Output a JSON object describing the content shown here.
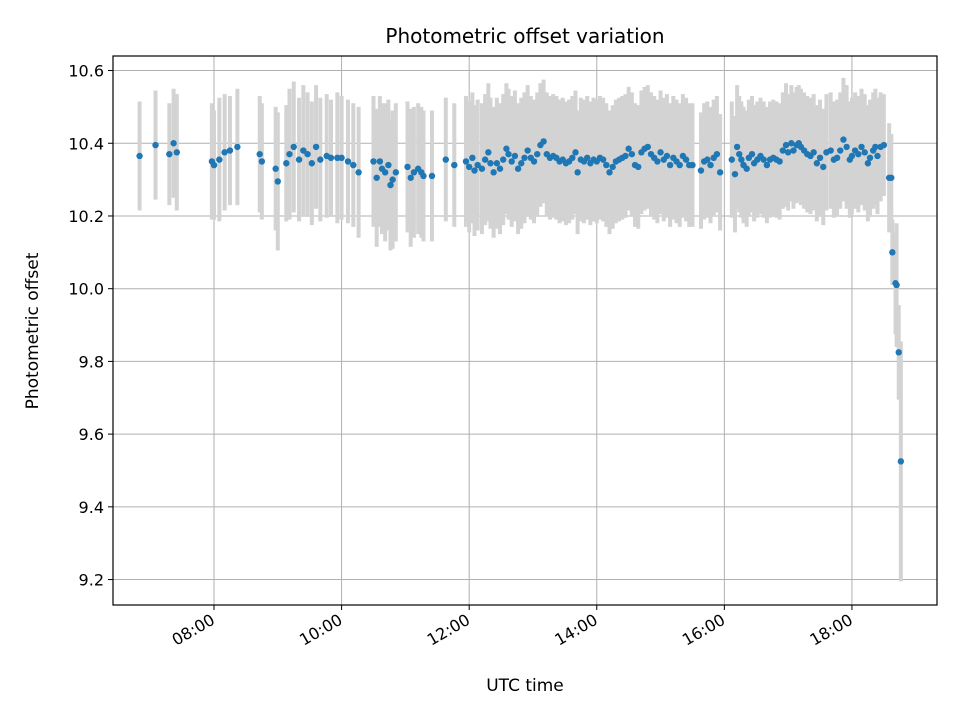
{
  "chart_data": {
    "type": "scatter",
    "title": "Photometric offset variation",
    "xlabel": "UTC time",
    "ylabel": "Photometric offset",
    "x_unit": "hours (UTC)",
    "xlim": [
      "06:25",
      "19:20"
    ],
    "ylim": [
      9.13,
      10.64
    ],
    "x_ticks": [
      "08:00",
      "10:00",
      "12:00",
      "14:00",
      "16:00",
      "18:00"
    ],
    "y_ticks": [
      "9.2",
      "9.4",
      "9.6",
      "9.8",
      "10.0",
      "10.2",
      "10.4",
      "10.6"
    ],
    "grid": true,
    "legend": "none",
    "colors": {
      "points": "#1f77b4",
      "errorbars": "#d3d3d3",
      "grid": "#b0b0b0"
    },
    "series": [
      {
        "points": [
          {
            "x": "06:50",
            "y": 10.365,
            "err": 0.15
          },
          {
            "x": "07:05",
            "y": 10.395,
            "err": 0.15
          },
          {
            "x": "07:18",
            "y": 10.37,
            "err": 0.14
          },
          {
            "x": "07:22",
            "y": 10.4,
            "err": 0.15
          },
          {
            "x": "07:25",
            "y": 10.375,
            "err": 0.16
          },
          {
            "x": "07:58",
            "y": 10.35,
            "err": 0.16
          },
          {
            "x": "08:00",
            "y": 10.34,
            "err": 0.15
          },
          {
            "x": "08:05",
            "y": 10.355,
            "err": 0.17
          },
          {
            "x": "08:10",
            "y": 10.375,
            "err": 0.16
          },
          {
            "x": "08:15",
            "y": 10.38,
            "err": 0.15
          },
          {
            "x": "08:22",
            "y": 10.39,
            "err": 0.16
          },
          {
            "x": "08:43",
            "y": 10.37,
            "err": 0.16
          },
          {
            "x": "08:45",
            "y": 10.35,
            "err": 0.16
          },
          {
            "x": "08:58",
            "y": 10.33,
            "err": 0.17
          },
          {
            "x": "09:00",
            "y": 10.295,
            "err": 0.19
          },
          {
            "x": "09:08",
            "y": 10.345,
            "err": 0.16
          },
          {
            "x": "09:11",
            "y": 10.37,
            "err": 0.18
          },
          {
            "x": "09:15",
            "y": 10.39,
            "err": 0.18
          },
          {
            "x": "09:20",
            "y": 10.355,
            "err": 0.17
          },
          {
            "x": "09:24",
            "y": 10.38,
            "err": 0.18
          },
          {
            "x": "09:28",
            "y": 10.37,
            "err": 0.17
          },
          {
            "x": "09:32",
            "y": 10.345,
            "err": 0.17
          },
          {
            "x": "09:36",
            "y": 10.39,
            "err": 0.17
          },
          {
            "x": "09:40",
            "y": 10.355,
            "err": 0.17
          },
          {
            "x": "09:46",
            "y": 10.365,
            "err": 0.17
          },
          {
            "x": "09:50",
            "y": 10.36,
            "err": 0.16
          },
          {
            "x": "09:56",
            "y": 10.36,
            "err": 0.18
          },
          {
            "x": "10:00",
            "y": 10.36,
            "err": 0.17
          },
          {
            "x": "10:06",
            "y": 10.35,
            "err": 0.17
          },
          {
            "x": "10:11",
            "y": 10.34,
            "err": 0.17
          },
          {
            "x": "10:16",
            "y": 10.32,
            "err": 0.18
          },
          {
            "x": "10:30",
            "y": 10.35,
            "err": 0.18
          },
          {
            "x": "10:33",
            "y": 10.305,
            "err": 0.19
          },
          {
            "x": "10:36",
            "y": 10.35,
            "err": 0.18
          },
          {
            "x": "10:38",
            "y": 10.33,
            "err": 0.18
          },
          {
            "x": "10:41",
            "y": 10.32,
            "err": 0.19
          },
          {
            "x": "10:44",
            "y": 10.34,
            "err": 0.18
          },
          {
            "x": "10:46",
            "y": 10.285,
            "err": 0.18
          },
          {
            "x": "10:48",
            "y": 10.3,
            "err": 0.19
          },
          {
            "x": "10:51",
            "y": 10.32,
            "err": 0.19
          },
          {
            "x": "11:02",
            "y": 10.335,
            "err": 0.18
          },
          {
            "x": "11:05",
            "y": 10.305,
            "err": 0.19
          },
          {
            "x": "11:08",
            "y": 10.32,
            "err": 0.18
          },
          {
            "x": "11:12",
            "y": 10.33,
            "err": 0.18
          },
          {
            "x": "11:15",
            "y": 10.32,
            "err": 0.18
          },
          {
            "x": "11:17",
            "y": 10.31,
            "err": 0.18
          },
          {
            "x": "11:25",
            "y": 10.31,
            "err": 0.18
          },
          {
            "x": "11:38",
            "y": 10.355,
            "err": 0.17
          },
          {
            "x": "11:46",
            "y": 10.34,
            "err": 0.17
          },
          {
            "x": "11:57",
            "y": 10.35,
            "err": 0.18
          },
          {
            "x": "12:00",
            "y": 10.335,
            "err": 0.18
          },
          {
            "x": "12:03",
            "y": 10.36,
            "err": 0.18
          },
          {
            "x": "12:05",
            "y": 10.325,
            "err": 0.18
          },
          {
            "x": "12:08",
            "y": 10.34,
            "err": 0.18
          },
          {
            "x": "12:12",
            "y": 10.33,
            "err": 0.18
          },
          {
            "x": "12:15",
            "y": 10.355,
            "err": 0.18
          },
          {
            "x": "12:18",
            "y": 10.375,
            "err": 0.19
          },
          {
            "x": "12:20",
            "y": 10.345,
            "err": 0.18
          },
          {
            "x": "12:23",
            "y": 10.32,
            "err": 0.18
          },
          {
            "x": "12:26",
            "y": 10.345,
            "err": 0.18
          },
          {
            "x": "12:29",
            "y": 10.33,
            "err": 0.18
          },
          {
            "x": "12:32",
            "y": 10.355,
            "err": 0.18
          },
          {
            "x": "12:35",
            "y": 10.385,
            "err": 0.18
          },
          {
            "x": "12:37",
            "y": 10.37,
            "err": 0.18
          },
          {
            "x": "12:40",
            "y": 10.35,
            "err": 0.18
          },
          {
            "x": "12:43",
            "y": 10.365,
            "err": 0.18
          },
          {
            "x": "12:46",
            "y": 10.33,
            "err": 0.18
          },
          {
            "x": "12:49",
            "y": 10.345,
            "err": 0.18
          },
          {
            "x": "12:52",
            "y": 10.36,
            "err": 0.18
          },
          {
            "x": "12:55",
            "y": 10.38,
            "err": 0.18
          },
          {
            "x": "12:58",
            "y": 10.36,
            "err": 0.17
          },
          {
            "x": "13:01",
            "y": 10.35,
            "err": 0.17
          },
          {
            "x": "13:04",
            "y": 10.37,
            "err": 0.17
          },
          {
            "x": "13:07",
            "y": 10.395,
            "err": 0.17
          },
          {
            "x": "13:10",
            "y": 10.405,
            "err": 0.17
          },
          {
            "x": "13:13",
            "y": 10.37,
            "err": 0.17
          },
          {
            "x": "13:16",
            "y": 10.36,
            "err": 0.17
          },
          {
            "x": "13:19",
            "y": 10.365,
            "err": 0.17
          },
          {
            "x": "13:22",
            "y": 10.36,
            "err": 0.17
          },
          {
            "x": "13:25",
            "y": 10.35,
            "err": 0.17
          },
          {
            "x": "13:28",
            "y": 10.355,
            "err": 0.17
          },
          {
            "x": "13:31",
            "y": 10.345,
            "err": 0.17
          },
          {
            "x": "13:34",
            "y": 10.35,
            "err": 0.17
          },
          {
            "x": "13:37",
            "y": 10.36,
            "err": 0.17
          },
          {
            "x": "13:40",
            "y": 10.375,
            "err": 0.17
          },
          {
            "x": "13:42",
            "y": 10.32,
            "err": 0.17
          },
          {
            "x": "13:45",
            "y": 10.355,
            "err": 0.17
          },
          {
            "x": "13:48",
            "y": 10.35,
            "err": 0.17
          },
          {
            "x": "13:51",
            "y": 10.36,
            "err": 0.17
          },
          {
            "x": "13:54",
            "y": 10.345,
            "err": 0.17
          },
          {
            "x": "13:57",
            "y": 10.355,
            "err": 0.17
          },
          {
            "x": "14:00",
            "y": 10.35,
            "err": 0.17
          },
          {
            "x": "14:03",
            "y": 10.36,
            "err": 0.17
          },
          {
            "x": "14:06",
            "y": 10.355,
            "err": 0.17
          },
          {
            "x": "14:09",
            "y": 10.34,
            "err": 0.17
          },
          {
            "x": "14:12",
            "y": 10.32,
            "err": 0.17
          },
          {
            "x": "14:15",
            "y": 10.335,
            "err": 0.17
          },
          {
            "x": "14:18",
            "y": 10.35,
            "err": 0.17
          },
          {
            "x": "14:21",
            "y": 10.355,
            "err": 0.17
          },
          {
            "x": "14:24",
            "y": 10.36,
            "err": 0.17
          },
          {
            "x": "14:27",
            "y": 10.365,
            "err": 0.17
          },
          {
            "x": "14:30",
            "y": 10.385,
            "err": 0.17
          },
          {
            "x": "14:33",
            "y": 10.37,
            "err": 0.17
          },
          {
            "x": "14:36",
            "y": 10.34,
            "err": 0.17
          },
          {
            "x": "14:39",
            "y": 10.335,
            "err": 0.17
          },
          {
            "x": "14:42",
            "y": 10.375,
            "err": 0.17
          },
          {
            "x": "14:45",
            "y": 10.385,
            "err": 0.17
          },
          {
            "x": "14:48",
            "y": 10.39,
            "err": 0.17
          },
          {
            "x": "14:51",
            "y": 10.37,
            "err": 0.17
          },
          {
            "x": "14:54",
            "y": 10.36,
            "err": 0.17
          },
          {
            "x": "14:57",
            "y": 10.35,
            "err": 0.17
          },
          {
            "x": "15:00",
            "y": 10.375,
            "err": 0.17
          },
          {
            "x": "15:03",
            "y": 10.355,
            "err": 0.17
          },
          {
            "x": "15:06",
            "y": 10.365,
            "err": 0.17
          },
          {
            "x": "15:09",
            "y": 10.34,
            "err": 0.17
          },
          {
            "x": "15:12",
            "y": 10.36,
            "err": 0.17
          },
          {
            "x": "15:15",
            "y": 10.35,
            "err": 0.17
          },
          {
            "x": "15:18",
            "y": 10.34,
            "err": 0.17
          },
          {
            "x": "15:21",
            "y": 10.365,
            "err": 0.17
          },
          {
            "x": "15:24",
            "y": 10.355,
            "err": 0.17
          },
          {
            "x": "15:27",
            "y": 10.34,
            "err": 0.17
          },
          {
            "x": "15:30",
            "y": 10.34,
            "err": 0.17
          },
          {
            "x": "15:38",
            "y": 10.325,
            "err": 0.16
          },
          {
            "x": "15:41",
            "y": 10.35,
            "err": 0.16
          },
          {
            "x": "15:44",
            "y": 10.355,
            "err": 0.16
          },
          {
            "x": "15:47",
            "y": 10.34,
            "err": 0.16
          },
          {
            "x": "15:50",
            "y": 10.36,
            "err": 0.16
          },
          {
            "x": "15:53",
            "y": 10.37,
            "err": 0.16
          },
          {
            "x": "15:56",
            "y": 10.32,
            "err": 0.16
          },
          {
            "x": "16:07",
            "y": 10.355,
            "err": 0.16
          },
          {
            "x": "16:10",
            "y": 10.315,
            "err": 0.16
          },
          {
            "x": "16:12",
            "y": 10.39,
            "err": 0.17
          },
          {
            "x": "16:14",
            "y": 10.37,
            "err": 0.16
          },
          {
            "x": "16:16",
            "y": 10.355,
            "err": 0.16
          },
          {
            "x": "16:18",
            "y": 10.34,
            "err": 0.16
          },
          {
            "x": "16:21",
            "y": 10.33,
            "err": 0.16
          },
          {
            "x": "16:23",
            "y": 10.36,
            "err": 0.16
          },
          {
            "x": "16:26",
            "y": 10.37,
            "err": 0.16
          },
          {
            "x": "16:28",
            "y": 10.345,
            "err": 0.16
          },
          {
            "x": "16:31",
            "y": 10.355,
            "err": 0.16
          },
          {
            "x": "16:34",
            "y": 10.365,
            "err": 0.16
          },
          {
            "x": "16:37",
            "y": 10.355,
            "err": 0.16
          },
          {
            "x": "16:40",
            "y": 10.34,
            "err": 0.16
          },
          {
            "x": "16:43",
            "y": 10.355,
            "err": 0.16
          },
          {
            "x": "16:46",
            "y": 10.36,
            "err": 0.16
          },
          {
            "x": "16:49",
            "y": 10.355,
            "err": 0.16
          },
          {
            "x": "16:52",
            "y": 10.35,
            "err": 0.16
          },
          {
            "x": "16:55",
            "y": 10.38,
            "err": 0.16
          },
          {
            "x": "16:58",
            "y": 10.395,
            "err": 0.17
          },
          {
            "x": "17:00",
            "y": 10.375,
            "err": 0.16
          },
          {
            "x": "17:03",
            "y": 10.4,
            "err": 0.16
          },
          {
            "x": "17:05",
            "y": 10.38,
            "err": 0.16
          },
          {
            "x": "17:08",
            "y": 10.395,
            "err": 0.16
          },
          {
            "x": "17:10",
            "y": 10.4,
            "err": 0.16
          },
          {
            "x": "17:12",
            "y": 10.39,
            "err": 0.16
          },
          {
            "x": "17:15",
            "y": 10.38,
            "err": 0.16
          },
          {
            "x": "17:18",
            "y": 10.37,
            "err": 0.16
          },
          {
            "x": "17:21",
            "y": 10.365,
            "err": 0.16
          },
          {
            "x": "17:24",
            "y": 10.375,
            "err": 0.16
          },
          {
            "x": "17:27",
            "y": 10.345,
            "err": 0.16
          },
          {
            "x": "17:30",
            "y": 10.36,
            "err": 0.16
          },
          {
            "x": "17:33",
            "y": 10.335,
            "err": 0.16
          },
          {
            "x": "17:36",
            "y": 10.375,
            "err": 0.16
          },
          {
            "x": "17:40",
            "y": 10.38,
            "err": 0.16
          },
          {
            "x": "17:43",
            "y": 10.355,
            "err": 0.16
          },
          {
            "x": "17:46",
            "y": 10.36,
            "err": 0.16
          },
          {
            "x": "17:49",
            "y": 10.38,
            "err": 0.16
          },
          {
            "x": "17:52",
            "y": 10.41,
            "err": 0.17
          },
          {
            "x": "17:55",
            "y": 10.39,
            "err": 0.17
          },
          {
            "x": "17:58",
            "y": 10.355,
            "err": 0.16
          },
          {
            "x": "18:00",
            "y": 10.365,
            "err": 0.16
          },
          {
            "x": "18:03",
            "y": 10.38,
            "err": 0.16
          },
          {
            "x": "18:06",
            "y": 10.37,
            "err": 0.16
          },
          {
            "x": "18:09",
            "y": 10.39,
            "err": 0.16
          },
          {
            "x": "18:12",
            "y": 10.375,
            "err": 0.16
          },
          {
            "x": "18:15",
            "y": 10.345,
            "err": 0.16
          },
          {
            "x": "18:17",
            "y": 10.36,
            "err": 0.16
          },
          {
            "x": "18:20",
            "y": 10.38,
            "err": 0.16
          },
          {
            "x": "18:22",
            "y": 10.39,
            "err": 0.16
          },
          {
            "x": "18:24",
            "y": 10.365,
            "err": 0.16
          },
          {
            "x": "18:27",
            "y": 10.39,
            "err": 0.15
          },
          {
            "x": "18:30",
            "y": 10.395,
            "err": 0.14
          },
          {
            "x": "18:35",
            "y": 10.305,
            "err": 0.15
          },
          {
            "x": "18:37",
            "y": 10.305,
            "err": 0.12
          },
          {
            "x": "18:38",
            "y": 10.1,
            "err": 0.09
          },
          {
            "x": "18:41",
            "y": 10.015,
            "err": 0.14
          },
          {
            "x": "18:42",
            "y": 10.01,
            "err": 0.17
          },
          {
            "x": "18:44",
            "y": 9.825,
            "err": 0.13
          },
          {
            "x": "18:46",
            "y": 9.525,
            "err": 0.33
          }
        ]
      }
    ]
  }
}
